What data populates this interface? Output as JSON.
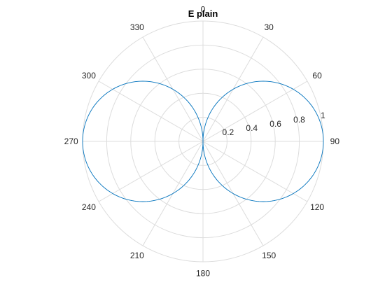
{
  "chart_data": {
    "type": "line",
    "projection": "polar",
    "title": "E plain",
    "theta_direction": "clockwise",
    "theta_zero_location": "top",
    "theta_ticks": [
      0,
      30,
      60,
      90,
      120,
      150,
      180,
      210,
      240,
      270,
      300,
      330
    ],
    "theta_tick_labels": [
      "0",
      "30",
      "60",
      "90",
      "120",
      "150",
      "180",
      "210",
      "240",
      "270",
      "300",
      "330"
    ],
    "r_ticks": [
      0.2,
      0.4,
      0.6,
      0.8,
      1
    ],
    "r_tick_labels": [
      "0.2",
      "0.4",
      "0.6",
      "0.8",
      "1"
    ],
    "rlim": [
      0,
      1
    ],
    "r_label_angle_deg": 80,
    "grid": true,
    "series": [
      {
        "pattern": "r = |sin(theta)|",
        "color": "#0072BD",
        "theta_deg": [
          0,
          10,
          20,
          30,
          40,
          50,
          60,
          70,
          80,
          90,
          100,
          110,
          120,
          130,
          140,
          150,
          160,
          170,
          180,
          190,
          200,
          210,
          220,
          230,
          240,
          250,
          260,
          270,
          280,
          290,
          300,
          310,
          320,
          330,
          340,
          350,
          360
        ],
        "r": [
          0,
          0.174,
          0.342,
          0.5,
          0.643,
          0.766,
          0.866,
          0.94,
          0.985,
          1,
          0.985,
          0.94,
          0.866,
          0.766,
          0.643,
          0.5,
          0.342,
          0.174,
          0,
          0.174,
          0.342,
          0.5,
          0.643,
          0.766,
          0.866,
          0.94,
          0.985,
          1,
          0.985,
          0.94,
          0.866,
          0.766,
          0.643,
          0.5,
          0.342,
          0.174,
          0
        ]
      }
    ]
  }
}
